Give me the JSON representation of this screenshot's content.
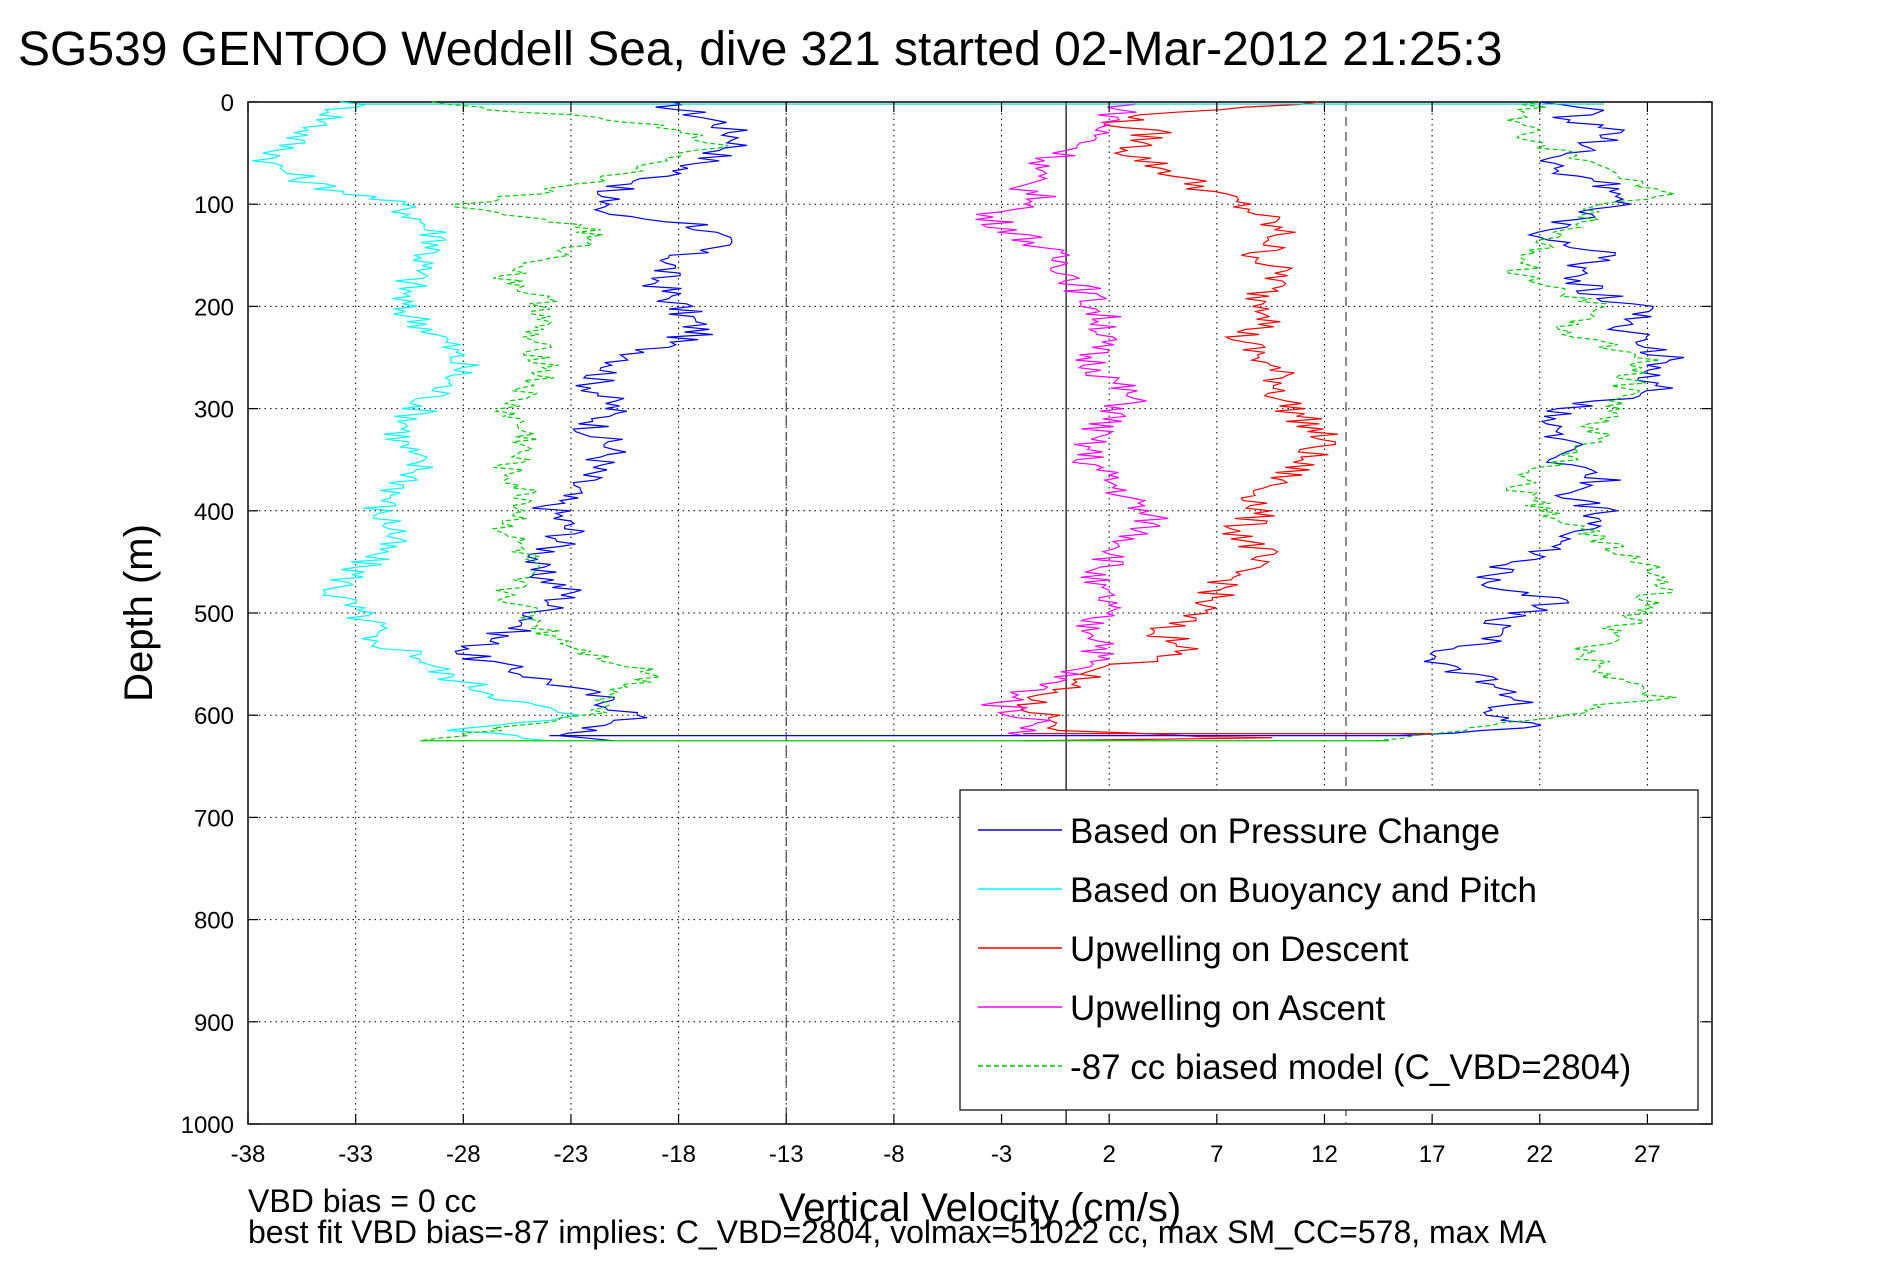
{
  "chart_data": {
    "type": "line",
    "title": "SG539 GENTOO Weddell Sea, dive 321 started 02-Mar-2012 21:25:3",
    "xlabel": "Vertical Velocity (cm/s)",
    "ylabel": "Depth (m)",
    "xlim": [
      -38,
      30
    ],
    "ylim": [
      1000,
      0
    ],
    "y_reversed": true,
    "grid": true,
    "legend_position": "lower-right",
    "x_ticks": [
      -38,
      -33,
      -28,
      -23,
      -18,
      -13,
      -8,
      -3,
      2,
      7,
      12,
      17,
      22,
      27
    ],
    "y_ticks": [
      0,
      100,
      200,
      300,
      400,
      500,
      600,
      700,
      800,
      900,
      1000
    ],
    "reference_lines": [
      {
        "x": -13,
        "style": "dashed"
      },
      {
        "x": 0,
        "style": "solid"
      },
      {
        "x": 13,
        "style": "dashed"
      }
    ],
    "series": [
      {
        "name": "Based on Pressure Change",
        "color": "#0000ff",
        "style": "solid",
        "segments": [
          {
            "x": [
              -19,
              -16,
              -15,
              -17,
              -19,
              -22,
              -21,
              -22,
              -20,
              -17,
              -16,
              -18,
              -19,
              -18,
              -17,
              -19,
              -21,
              -22,
              -21,
              -22,
              -21,
              -22,
              -23,
              -24,
              -23,
              -24,
              -25,
              -23,
              -24,
              -25,
              -26,
              -28,
              -25,
              -22,
              -21,
              -20,
              -21,
              -24,
              -21
            ],
            "y": [
              0,
              20,
              40,
              60,
              75,
              90,
              100,
              108,
              112,
              120,
              140,
              150,
              175,
              200,
              225,
              240,
              260,
              275,
              300,
              320,
              340,
              360,
              380,
              395,
              420,
              440,
              455,
              480,
              495,
              510,
              520,
              540,
              560,
              580,
              590,
              600,
              610,
              620,
              625
            ]
          },
          {
            "x": [
              16,
              22,
              20,
              21,
              20,
              18,
              17,
              21,
              20,
              23,
              19,
              21,
              23,
              24,
              25,
              23,
              25,
              23,
              24,
              22,
              23,
              28,
              27,
              28,
              26,
              27,
              25,
              23,
              25,
              22,
              24,
              26,
              25,
              22,
              24,
              26,
              23,
              25,
              22
            ],
            "y": [
              620,
              610,
              600,
              585,
              570,
              555,
              540,
              520,
              505,
              490,
              470,
              450,
              435,
              415,
              400,
              385,
              370,
              355,
              340,
              320,
              300,
              280,
              265,
              250,
              225,
              205,
              190,
              170,
              150,
              130,
              110,
              95,
              80,
              60,
              45,
              30,
              15,
              8,
              0
            ]
          }
        ]
      },
      {
        "name": "Based on Buoyancy and Pitch",
        "color": "#00ffff",
        "style": "solid",
        "segments": [
          {
            "x": [
              -33,
              -36,
              -37,
              -35,
              -31,
              -30,
              -29,
              -30,
              -31,
              -29,
              -28,
              -29,
              -30,
              -31,
              -30,
              -31,
              -32,
              -31,
              -32,
              -33,
              -34,
              -33,
              -32,
              -33,
              -30,
              -29,
              -27,
              -25,
              -23,
              -26,
              -28,
              -26,
              -24
            ],
            "y": [
              0,
              40,
              60,
              80,
              100,
              115,
              135,
              160,
              200,
              230,
              260,
              280,
              300,
              330,
              360,
              380,
              400,
              420,
              440,
              460,
              480,
              500,
              515,
              525,
              540,
              560,
              575,
              590,
              600,
              610,
              615,
              620,
              625
            ]
          },
          {
            "x": 18.0,
            "y": 0
          }
        ]
      },
      {
        "name": "Upwelling on Descent",
        "color": "#ff0000",
        "style": "solid",
        "segments": [
          {
            "x": [
              12,
              5,
              2,
              4,
              3,
              5,
              7,
              9,
              10,
              9,
              10,
              9,
              10,
              8,
              9,
              10,
              10,
              11,
              12,
              11,
              10,
              9,
              9,
              8,
              9,
              8,
              7,
              6,
              5,
              4,
              6,
              5,
              3,
              1,
              0,
              -1,
              -2,
              -1,
              0,
              0,
              5,
              9,
              -2
            ],
            "y": [
              0,
              10,
              20,
              30,
              50,
              70,
              90,
              110,
              130,
              150,
              170,
              190,
              210,
              230,
              250,
              270,
              290,
              310,
              330,
              350,
              370,
              380,
              400,
              420,
              440,
              460,
              480,
              500,
              510,
              520,
              530,
              540,
              550,
              560,
              570,
              580,
              590,
              600,
              610,
              615,
              620,
              622,
              625
            ]
          }
        ]
      },
      {
        "name": "Upwelling on Ascent",
        "color": "#ff00ff",
        "style": "solid",
        "segments": [
          {
            "x": [
              3,
              2,
              1,
              -1,
              -2,
              -1,
              -4,
              -2,
              0,
              1,
              2,
              1,
              2,
              3,
              2,
              1,
              1,
              2,
              3,
              4,
              3,
              2,
              1,
              2,
              1,
              2,
              1,
              0,
              -1,
              -2,
              -3,
              -2,
              -1,
              -2
            ],
            "y": [
              0,
              20,
              40,
              60,
              80,
              100,
              110,
              130,
              160,
              190,
              220,
              250,
              270,
              290,
              310,
              330,
              350,
              370,
              390,
              410,
              430,
              450,
              470,
              490,
              510,
              530,
              550,
              560,
              570,
              580,
              590,
              600,
              610,
              620
            ]
          }
        ]
      },
      {
        "name": "-87 cc biased model (C_VBD=2804)",
        "color": "#00cc00",
        "style": "dashed",
        "segments": [
          {
            "x": [
              -30,
              -20,
              -16,
              -19,
              -22,
              -28,
              -27,
              -24,
              -22,
              -23,
              -26,
              -24,
              -25,
              -24,
              -26,
              -25,
              -26,
              -25,
              -26,
              -25,
              -26,
              -25,
              -24,
              -22,
              -19,
              -21,
              -22,
              -25,
              -30
            ],
            "y": [
              0,
              20,
              40,
              60,
              80,
              100,
              108,
              115,
              125,
              145,
              170,
              200,
              230,
              260,
              300,
              330,
              360,
              390,
              420,
              450,
              480,
              500,
              520,
              540,
              560,
              580,
              600,
              610,
              625
            ]
          },
          {
            "x": [
              15,
              18,
              21,
              23,
              25,
              28,
              26,
              25,
              24,
              25,
              26,
              27,
              28,
              27,
              25,
              23,
              22,
              21,
              22,
              24,
              25,
              26,
              27,
              23,
              25,
              21,
              22,
              24,
              25,
              28,
              25,
              22,
              21,
              22
            ],
            "y": [
              625,
              615,
              605,
              600,
              590,
              585,
              570,
              555,
              540,
              525,
              510,
              490,
              470,
              450,
              430,
              410,
              395,
              380,
              360,
              340,
              310,
              280,
              250,
              225,
              200,
              170,
              140,
              120,
              100,
              90,
              70,
              40,
              20,
              0
            ]
          }
        ]
      }
    ]
  },
  "footer": {
    "line1": "VBD bias = 0 cc",
    "line2": "best fit VBD bias=-87 implies: C_VBD=2804, volmax=51022 cc, max SM_CC=578, max MA"
  }
}
